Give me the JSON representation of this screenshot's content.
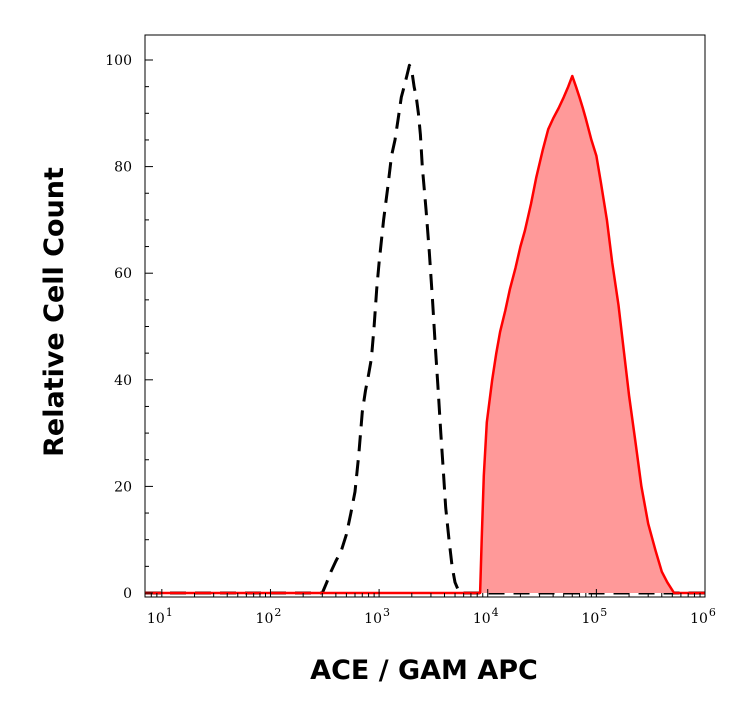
{
  "chart_data": {
    "type": "area",
    "title": "",
    "xlabel": "ACE / GAM APC",
    "ylabel": "Relative Cell Count",
    "xscale": "log",
    "xlim": [
      7,
      1000000
    ],
    "ylim": [
      0,
      100
    ],
    "grid": false,
    "legend": "none",
    "x_tick_labels": [
      {
        "base": "10",
        "exp": "1",
        "value": 10
      },
      {
        "base": "10",
        "exp": "2",
        "value": 100
      },
      {
        "base": "10",
        "exp": "3",
        "value": 1000
      },
      {
        "base": "10",
        "exp": "4",
        "value": 10000
      },
      {
        "base": "10",
        "exp": "5",
        "value": 100000
      },
      {
        "base": "10",
        "exp": "6",
        "value": 1000000
      }
    ],
    "y_ticks": [
      "0",
      "20",
      "40",
      "60",
      "80",
      "100"
    ],
    "series": [
      {
        "style": "dashed",
        "color": "#000000",
        "fill": "none",
        "points": [
          [
            300,
            0
          ],
          [
            330,
            2
          ],
          [
            360,
            4
          ],
          [
            400,
            6
          ],
          [
            450,
            8
          ],
          [
            500,
            11
          ],
          [
            550,
            15
          ],
          [
            600,
            19
          ],
          [
            650,
            26
          ],
          [
            700,
            34
          ],
          [
            750,
            38
          ],
          [
            800,
            41
          ],
          [
            850,
            44
          ],
          [
            900,
            50
          ],
          [
            950,
            57
          ],
          [
            1000,
            62
          ],
          [
            1100,
            70
          ],
          [
            1200,
            76
          ],
          [
            1300,
            82
          ],
          [
            1400,
            85
          ],
          [
            1500,
            89
          ],
          [
            1600,
            93
          ],
          [
            1700,
            95
          ],
          [
            1800,
            97
          ],
          [
            1900,
            99
          ],
          [
            2000,
            98
          ],
          [
            2100,
            95
          ],
          [
            2200,
            93
          ],
          [
            2300,
            90
          ],
          [
            2400,
            86
          ],
          [
            2500,
            80
          ],
          [
            2700,
            72
          ],
          [
            2900,
            64
          ],
          [
            3100,
            55
          ],
          [
            3300,
            46
          ],
          [
            3500,
            38
          ],
          [
            3700,
            30
          ],
          [
            3900,
            23
          ],
          [
            4100,
            16
          ],
          [
            4400,
            10
          ],
          [
            4700,
            5
          ],
          [
            5000,
            2
          ],
          [
            5500,
            0
          ]
        ]
      },
      {
        "style": "solid",
        "color": "#ff0000",
        "fill": "#ff9999",
        "points": [
          [
            8500,
            0
          ],
          [
            8800,
            10
          ],
          [
            9200,
            22
          ],
          [
            9800,
            32
          ],
          [
            11000,
            40
          ],
          [
            12000,
            45
          ],
          [
            13000,
            49
          ],
          [
            14500,
            53
          ],
          [
            16000,
            57
          ],
          [
            18000,
            61
          ],
          [
            20000,
            65
          ],
          [
            22000,
            68
          ],
          [
            25000,
            73
          ],
          [
            28000,
            78
          ],
          [
            32000,
            83
          ],
          [
            36000,
            87
          ],
          [
            40000,
            89
          ],
          [
            45000,
            91
          ],
          [
            50000,
            93
          ],
          [
            55000,
            95
          ],
          [
            60000,
            97
          ],
          [
            65000,
            95
          ],
          [
            70000,
            93
          ],
          [
            75000,
            91
          ],
          [
            80000,
            89
          ],
          [
            90000,
            85
          ],
          [
            100000,
            82
          ],
          [
            110000,
            77
          ],
          [
            125000,
            70
          ],
          [
            140000,
            62
          ],
          [
            160000,
            54
          ],
          [
            180000,
            45
          ],
          [
            200000,
            37
          ],
          [
            230000,
            28
          ],
          [
            260000,
            20
          ],
          [
            300000,
            13
          ],
          [
            350000,
            8
          ],
          [
            400000,
            4
          ],
          [
            450000,
            2
          ],
          [
            520000,
            0
          ]
        ]
      }
    ]
  }
}
